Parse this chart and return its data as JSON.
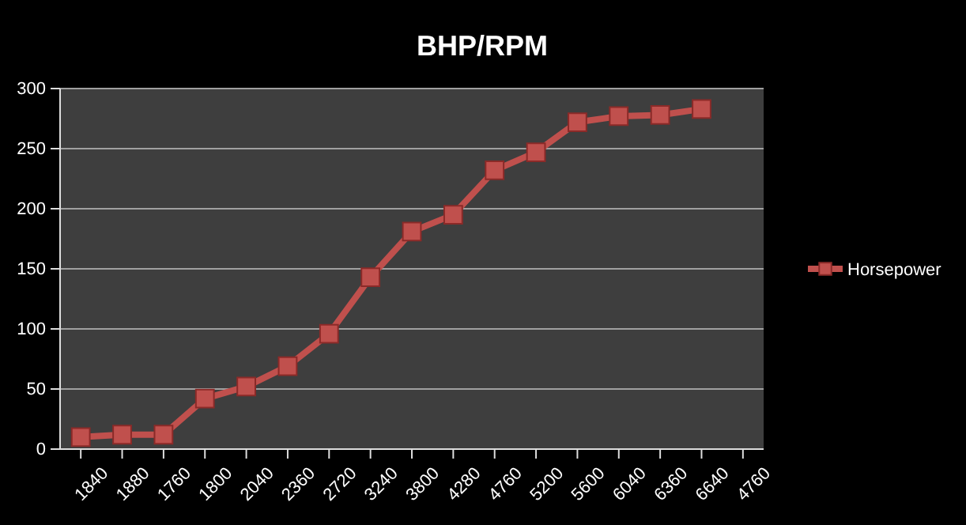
{
  "chart_data": {
    "type": "line",
    "title": "BHP/RPM",
    "categories": [
      "1840",
      "1880",
      "1760",
      "1800",
      "2040",
      "2360",
      "2720",
      "3240",
      "3800",
      "4280",
      "4760",
      "5200",
      "5600",
      "6040",
      "6360",
      "6640",
      "4760"
    ],
    "series": [
      {
        "name": "Horsepower",
        "color": "#c0504d",
        "values": [
          10,
          12,
          12,
          42,
          52,
          69,
          96,
          143,
          181,
          195,
          232,
          247,
          272,
          277,
          278,
          283,
          null
        ]
      }
    ],
    "ylim": [
      0,
      300
    ],
    "yticks": [
      0,
      50,
      100,
      150,
      200,
      250,
      300
    ],
    "grid": "y",
    "legend": "right",
    "marker": "square",
    "line_style": "solid"
  }
}
